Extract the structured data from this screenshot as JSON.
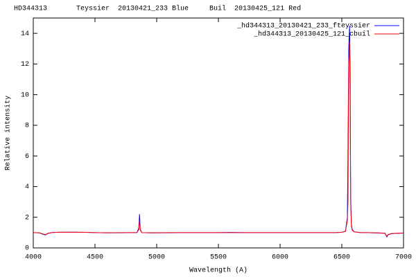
{
  "chart_data": {
    "type": "line",
    "title": "HD344313       Teyssier  20130421_233 Blue     Buil  20130425_121 Red",
    "x_label": "Wavelength (A)",
    "y_label": "Relative intensity",
    "x": [
      4000,
      4050,
      4080,
      4100,
      4120,
      4150,
      4200,
      4300,
      4400,
      4500,
      4600,
      4700,
      4800,
      4840,
      4855,
      4861,
      4867,
      4880,
      4950,
      5000,
      5100,
      5200,
      5300,
      5400,
      5500,
      5600,
      5700,
      5800,
      5900,
      6000,
      6100,
      6200,
      6300,
      6400,
      6450,
      6500,
      6530,
      6545,
      6550,
      6556,
      6563,
      6568,
      6572,
      6578,
      6585,
      6600,
      6650,
      6700,
      6750,
      6800,
      6850,
      6865,
      6875,
      6900,
      6950,
      7000
    ],
    "series": [
      {
        "name": "_hd344313_20130421_233_fteyssier",
        "color": "#0000ff",
        "values": [
          1.0,
          0.98,
          0.88,
          0.85,
          0.95,
          1.0,
          1.02,
          1.03,
          1.02,
          1.0,
          0.98,
          0.99,
          1.0,
          1.0,
          1.3,
          2.2,
          1.2,
          1.0,
          0.98,
          0.98,
          0.99,
          1.0,
          1.0,
          1.0,
          1.0,
          1.01,
          1.0,
          1.0,
          1.0,
          1.0,
          1.0,
          1.0,
          1.0,
          1.0,
          1.0,
          1.02,
          1.1,
          2.0,
          6.3,
          13.0,
          14.5,
          11.0,
          3.2,
          1.5,
          1.2,
          1.05,
          1.0,
          1.0,
          0.98,
          0.97,
          0.95,
          0.72,
          0.85,
          0.93,
          0.95,
          0.97
        ]
      },
      {
        "name": "_hd344313_20130425_121_cbuil",
        "color": "#ff0000",
        "values": [
          1.0,
          0.99,
          0.9,
          0.87,
          0.96,
          1.0,
          1.02,
          1.02,
          1.02,
          1.0,
          0.99,
          1.0,
          1.0,
          1.0,
          1.2,
          1.8,
          1.15,
          1.0,
          0.99,
          0.99,
          1.0,
          1.0,
          1.0,
          1.0,
          1.0,
          1.0,
          1.0,
          1.0,
          1.0,
          1.0,
          1.0,
          1.0,
          1.0,
          1.0,
          1.0,
          1.02,
          1.08,
          1.8,
          3.0,
          12.0,
          13.4,
          9.0,
          2.8,
          1.4,
          1.15,
          1.05,
          1.0,
          1.0,
          0.99,
          0.98,
          0.96,
          0.75,
          0.87,
          0.94,
          0.96,
          0.97
        ]
      }
    ],
    "xlim": [
      4000,
      7000
    ],
    "xticks": [
      4000,
      4500,
      5000,
      5500,
      6000,
      6500,
      7000
    ],
    "ylim": [
      0,
      15
    ],
    "yticks": [
      0,
      2,
      4,
      6,
      8,
      10,
      12,
      14
    ],
    "grid": false,
    "legend": "top-right"
  }
}
